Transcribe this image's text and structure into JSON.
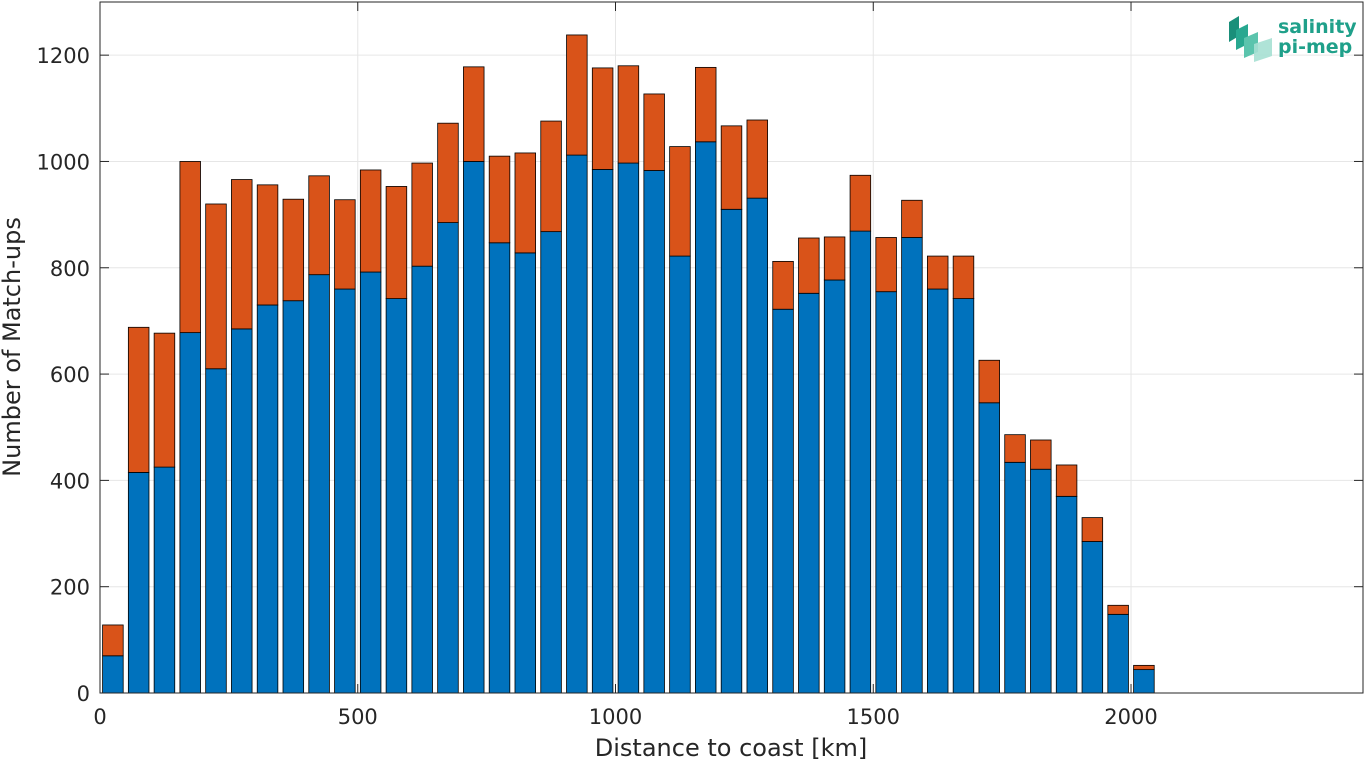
{
  "chart_data": {
    "type": "bar",
    "stacked": true,
    "xlabel": "Distance to coast [km]",
    "ylabel": "Number of Match-ups",
    "xlim": [
      0,
      2450
    ],
    "ylim": [
      0,
      1300
    ],
    "xticks": [
      0,
      500,
      1000,
      1500,
      2000
    ],
    "yticks": [
      0,
      200,
      400,
      600,
      800,
      1000,
      1200
    ],
    "grid": true,
    "bar_width": 40,
    "x": [
      25,
      75,
      125,
      175,
      225,
      275,
      325,
      375,
      425,
      475,
      525,
      575,
      625,
      675,
      725,
      775,
      825,
      875,
      925,
      975,
      1025,
      1075,
      1125,
      1175,
      1225,
      1275,
      1325,
      1375,
      1425,
      1475,
      1525,
      1575,
      1625,
      1675,
      1725,
      1775,
      1825,
      1875,
      1925,
      1975,
      2025
    ],
    "series": [
      {
        "color": "#0072BD",
        "values": [
          70,
          415,
          425,
          678,
          610,
          685,
          730,
          738,
          787,
          760,
          792,
          742,
          803,
          885,
          1000,
          847,
          828,
          868,
          1012,
          985,
          997,
          983,
          822,
          1037,
          910,
          931,
          722,
          752,
          777,
          869,
          755,
          857,
          760,
          742,
          546,
          434,
          421,
          370,
          285,
          148,
          44
        ]
      },
      {
        "color": "#D95319",
        "values": [
          58,
          273,
          252,
          322,
          310,
          281,
          226,
          191,
          186,
          168,
          192,
          211,
          194,
          187,
          178,
          163,
          188,
          208,
          226,
          191,
          183,
          144,
          206,
          140,
          157,
          147,
          90,
          104,
          81,
          105,
          102,
          70,
          62,
          80,
          80,
          52,
          55,
          59,
          45,
          17,
          8
        ]
      }
    ]
  },
  "logo": {
    "line1": "salinity",
    "line2": "pi-mep"
  }
}
